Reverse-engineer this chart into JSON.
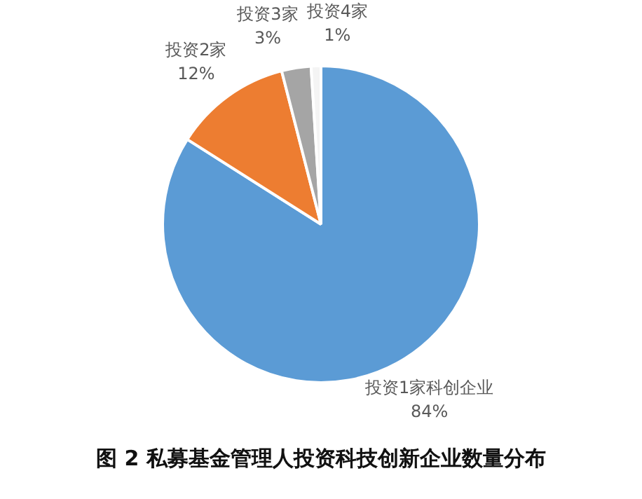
{
  "chart_data": {
    "type": "pie",
    "title": "图 2 私募基金管理人投资科技创新企业数量分布",
    "categories": [
      "投资1家科创企业",
      "投资2家",
      "投资3家",
      "投资4家"
    ],
    "values": [
      84,
      12,
      3,
      1
    ],
    "value_labels": [
      "84%",
      "12%",
      "3%",
      "1%"
    ],
    "colors": [
      "#5b9bd5",
      "#ed7d31",
      "#a5a5a5",
      "#f4f4f4"
    ],
    "legend": false
  }
}
